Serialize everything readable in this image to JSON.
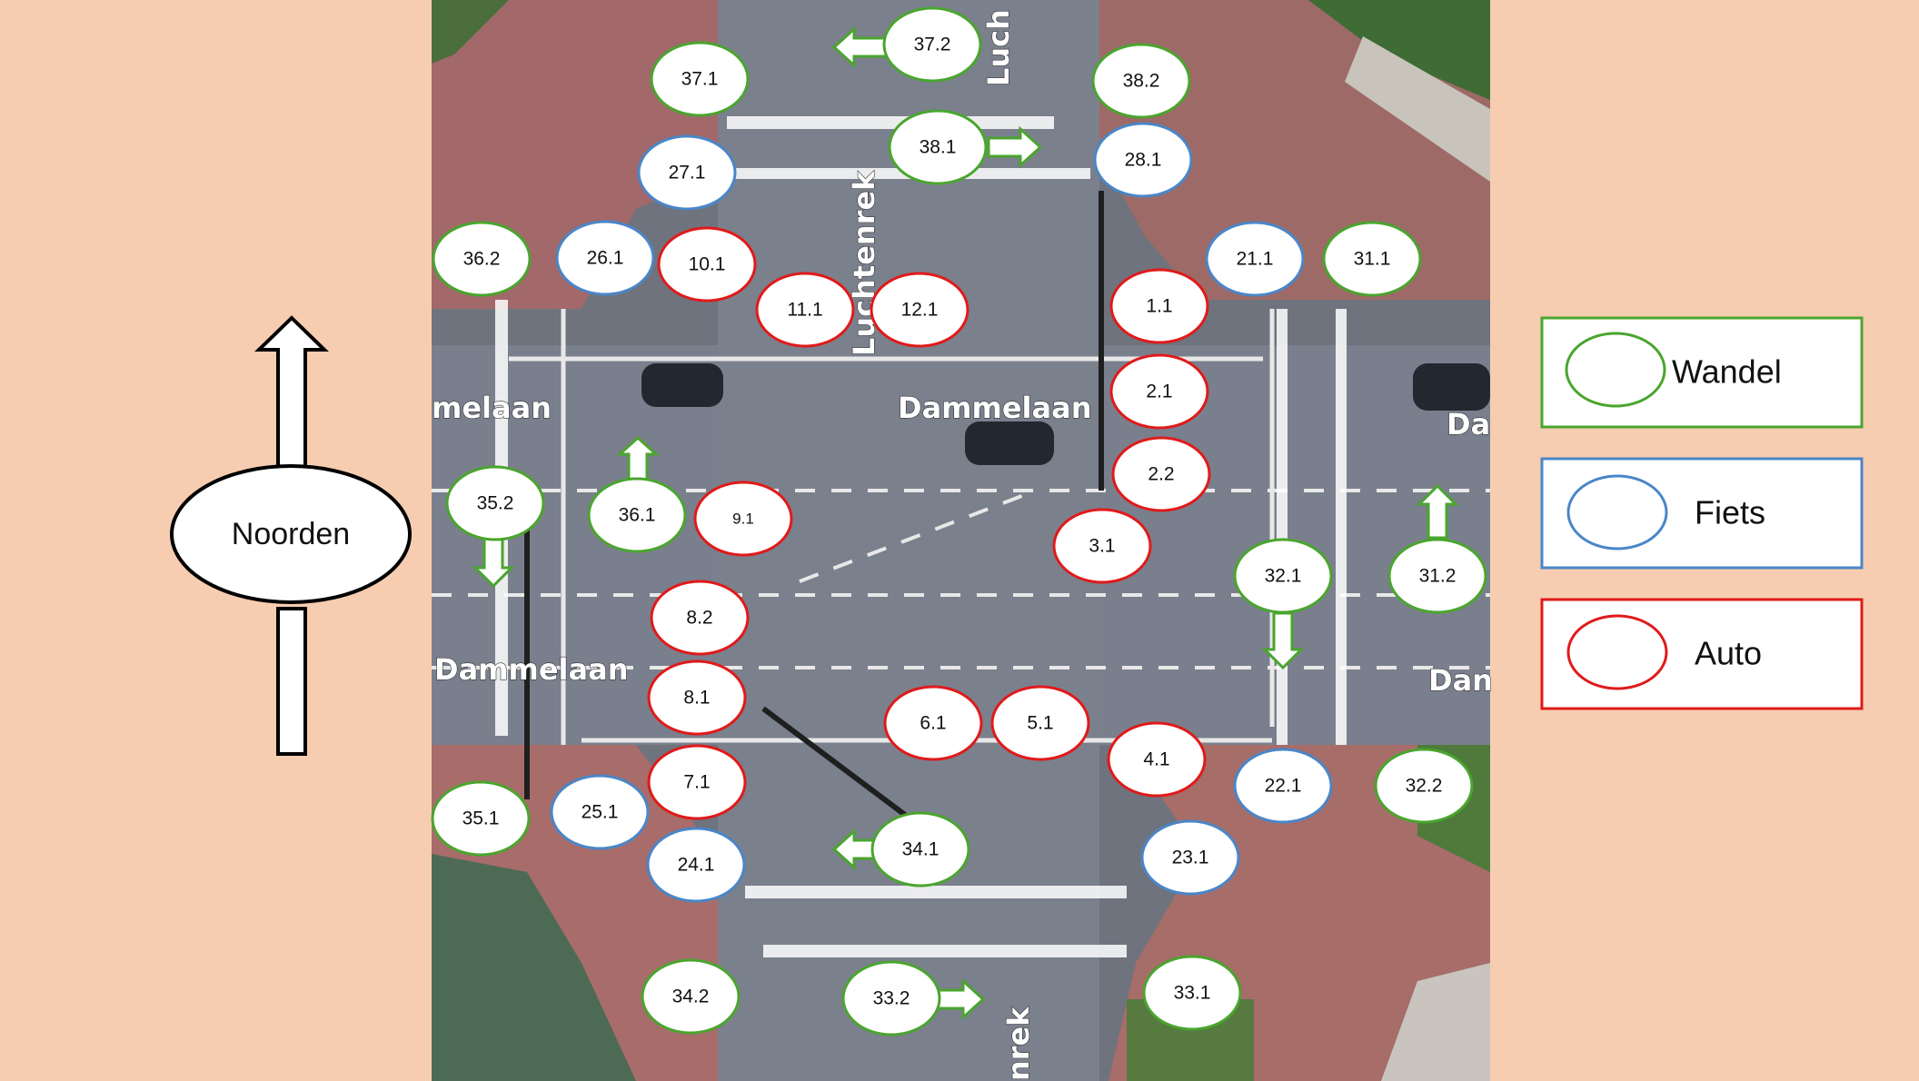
{
  "compass": {
    "label": "Noorden"
  },
  "legend": [
    {
      "label": "Wandel",
      "color": "#4aa52e"
    },
    {
      "label": "Fiets",
      "color": "#4a86c8"
    },
    {
      "label": "Auto",
      "color": "#e01a1a"
    }
  ],
  "streets": {
    "dammelaan_left_top": "melaan",
    "dammelaan_center": "Dammelaan",
    "dammelaan_right_top": "Da",
    "dammelaan_left_bottom": "Dammelaan",
    "dammelaan_right_bottom": "Dan",
    "luchtenrek_top_center": "Luchtenrek",
    "luchtenrek_top_right": "Luch",
    "luchtenrek_bottom": "nrek"
  },
  "signals": [
    {
      "label": "37.1",
      "type": "Wandel"
    },
    {
      "label": "37.2",
      "type": "Wandel"
    },
    {
      "label": "38.2",
      "type": "Wandel"
    },
    {
      "label": "38.1",
      "type": "Wandel"
    },
    {
      "label": "27.1",
      "type": "Fiets"
    },
    {
      "label": "28.1",
      "type": "Fiets"
    },
    {
      "label": "36.2",
      "type": "Wandel"
    },
    {
      "label": "26.1",
      "type": "Fiets"
    },
    {
      "label": "10.1",
      "type": "Auto"
    },
    {
      "label": "11.1",
      "type": "Auto"
    },
    {
      "label": "12.1",
      "type": "Auto"
    },
    {
      "label": "1.1",
      "type": "Auto"
    },
    {
      "label": "21.1",
      "type": "Fiets"
    },
    {
      "label": "31.1",
      "type": "Wandel"
    },
    {
      "label": "2.1",
      "type": "Auto"
    },
    {
      "label": "2.2",
      "type": "Auto"
    },
    {
      "label": "35.2",
      "type": "Wandel"
    },
    {
      "label": "36.1",
      "type": "Wandel"
    },
    {
      "label": "9.1",
      "type": "Auto"
    },
    {
      "label": "3.1",
      "type": "Auto"
    },
    {
      "label": "32.1",
      "type": "Wandel"
    },
    {
      "label": "31.2",
      "type": "Wandel"
    },
    {
      "label": "8.2",
      "type": "Auto"
    },
    {
      "label": "8.1",
      "type": "Auto"
    },
    {
      "label": "6.1",
      "type": "Auto"
    },
    {
      "label": "5.1",
      "type": "Auto"
    },
    {
      "label": "4.1",
      "type": "Auto"
    },
    {
      "label": "22.1",
      "type": "Fiets"
    },
    {
      "label": "32.2",
      "type": "Wandel"
    },
    {
      "label": "7.1",
      "type": "Auto"
    },
    {
      "label": "35.1",
      "type": "Wandel"
    },
    {
      "label": "25.1",
      "type": "Fiets"
    },
    {
      "label": "34.1",
      "type": "Wandel"
    },
    {
      "label": "24.1",
      "type": "Fiets"
    },
    {
      "label": "23.1",
      "type": "Fiets"
    },
    {
      "label": "34.2",
      "type": "Wandel"
    },
    {
      "label": "33.2",
      "type": "Wandel"
    },
    {
      "label": "33.1",
      "type": "Wandel"
    }
  ]
}
